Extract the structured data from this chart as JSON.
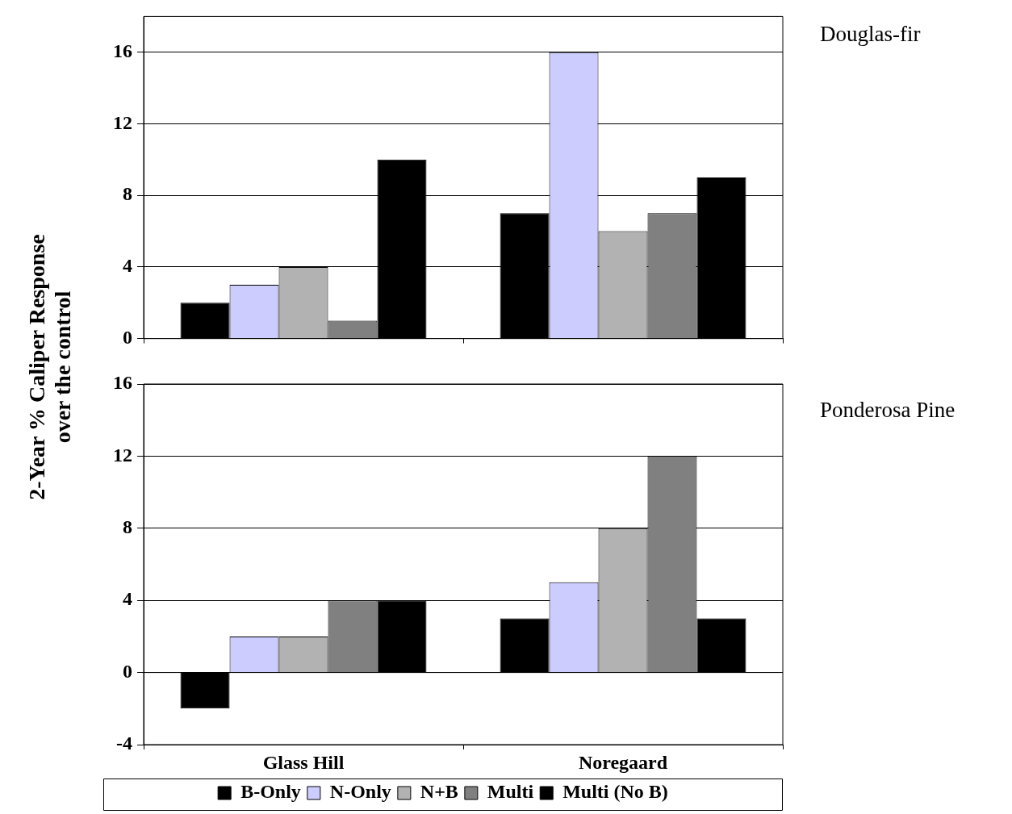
{
  "chart_data": [
    {
      "type": "bar",
      "annotations": [
        "Douglas-fir"
      ],
      "ylabel": "2-Year % Caliper Response over the control",
      "categories": [
        null,
        null
      ],
      "series": [
        {
          "color": "#000000",
          "values": [
            2,
            7
          ]
        },
        {
          "color": "#ccccff",
          "values": [
            3,
            16
          ]
        },
        {
          "color": "#b2b2b2",
          "values": [
            4,
            6
          ]
        },
        {
          "color": "#808080",
          "values": [
            1,
            7
          ]
        },
        {
          "color": "#000000",
          "values": [
            10,
            9
          ]
        }
      ],
      "ylim": [
        0,
        18
      ],
      "yticks": [
        0,
        4,
        8,
        12,
        16
      ],
      "grid": "y",
      "tick_labels": "y"
    },
    {
      "type": "bar",
      "annotations": [
        "Ponderosa Pine"
      ],
      "categories": [
        "Glass Hill",
        "Noregaard"
      ],
      "series": [
        {
          "name": "B-Only",
          "color": "#000000",
          "values": [
            -2,
            3
          ]
        },
        {
          "name": "N-Only",
          "color": "#ccccff",
          "values": [
            2,
            5
          ]
        },
        {
          "name": "N+B",
          "color": "#b2b2b2",
          "values": [
            2,
            8
          ]
        },
        {
          "name": "Multi",
          "color": "#808080",
          "values": [
            4,
            12
          ]
        },
        {
          "name": "Multi (No B)",
          "color": "#000000",
          "values": [
            4,
            3
          ]
        }
      ],
      "ylim": [
        -4,
        16
      ],
      "yticks": [
        -4,
        0,
        4,
        8,
        12,
        16
      ],
      "grid": "y",
      "legend": "bottom"
    }
  ]
}
